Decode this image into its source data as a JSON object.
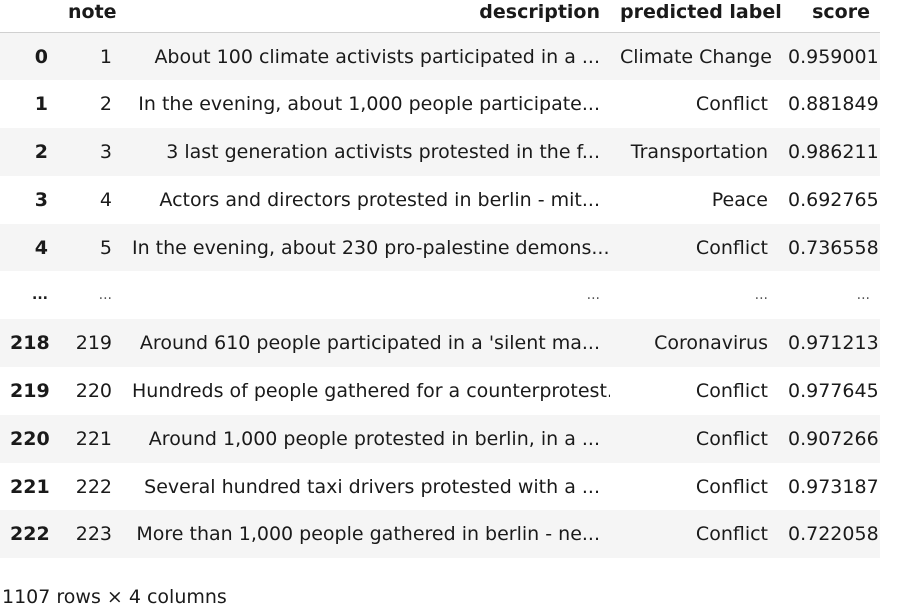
{
  "table": {
    "columns": [
      "note",
      "description",
      "predicted label",
      "score"
    ],
    "rows": [
      {
        "index": "0",
        "note": "1",
        "description": "About 100 climate activists participated in a ...",
        "label": "Climate Change",
        "score": "0.959001"
      },
      {
        "index": "1",
        "note": "2",
        "description": "In the evening, about 1,000 people participate...",
        "label": "Conflict",
        "score": "0.881849"
      },
      {
        "index": "2",
        "note": "3",
        "description": "3 last generation activists protested in the f...",
        "label": "Transportation",
        "score": "0.986211"
      },
      {
        "index": "3",
        "note": "4",
        "description": "Actors and directors protested in berlin - mit...",
        "label": "Peace",
        "score": "0.692765"
      },
      {
        "index": "4",
        "note": "5",
        "description": "In the evening, about 230 pro-palestine demons...",
        "label": "Conflict",
        "score": "0.736558"
      },
      {
        "index": "...",
        "note": "...",
        "description": "...",
        "label": "...",
        "score": "..."
      },
      {
        "index": "218",
        "note": "219",
        "description": "Around 610 people participated in a 'silent ma...",
        "label": "Coronavirus",
        "score": "0.971213"
      },
      {
        "index": "219",
        "note": "220",
        "description": "Hundreds of people gathered for a counterprotest.",
        "label": "Conflict",
        "score": "0.977645"
      },
      {
        "index": "220",
        "note": "221",
        "description": "Around 1,000 people protested in berlin, in a ...",
        "label": "Conflict",
        "score": "0.907266"
      },
      {
        "index": "221",
        "note": "222",
        "description": "Several hundred taxi drivers protested with a ...",
        "label": "Conflict",
        "score": "0.973187"
      },
      {
        "index": "222",
        "note": "223",
        "description": "More than 1,000 people gathered in berlin - ne...",
        "label": "Conflict",
        "score": "0.722058"
      }
    ]
  },
  "shape_text": "1107 rows × 4 columns"
}
